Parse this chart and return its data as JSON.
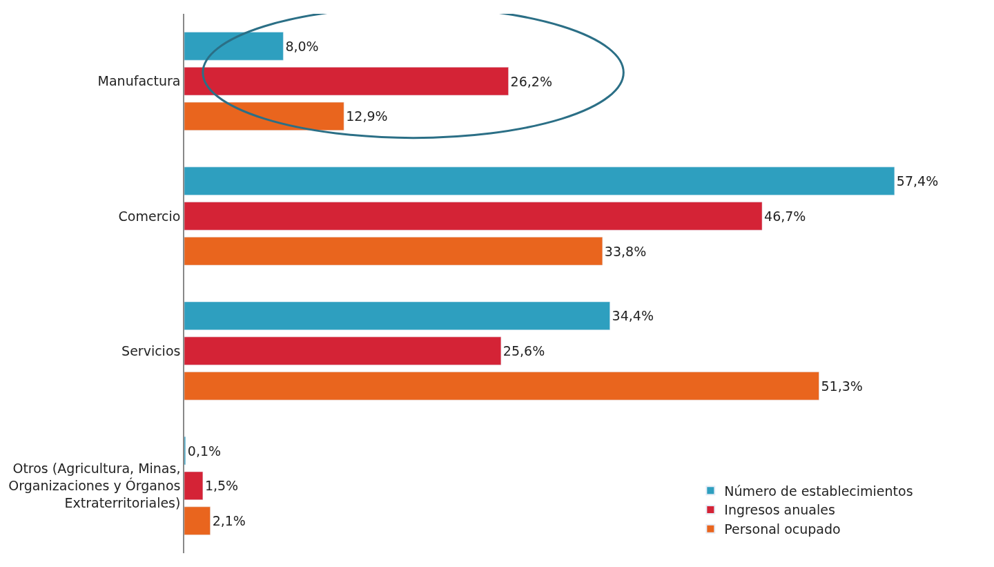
{
  "chart_data": {
    "type": "bar",
    "orientation": "horizontal",
    "categories": [
      "Manufactura",
      "Comercio",
      "Servicios",
      "Otros (Agricultura, Minas, Organizaciones y Órganos Extraterritoriales)"
    ],
    "series": [
      {
        "name": "Número de establecimientos",
        "color": "#2e9fbf",
        "values": [
          8.0,
          57.4,
          34.4,
          0.1
        ],
        "value_labels": [
          "8,0%",
          "57,4%",
          "34,4%",
          "0,1%"
        ]
      },
      {
        "name": "Ingresos anuales",
        "color": "#d42336",
        "values": [
          26.2,
          46.7,
          25.6,
          1.5
        ],
        "value_labels": [
          "26,2%",
          "46,7%",
          "25,6%",
          "1,5%"
        ]
      },
      {
        "name": "Personal ocupado",
        "color": "#e9651e",
        "values": [
          12.9,
          33.8,
          51.3,
          2.1
        ],
        "value_labels": [
          "12,9%",
          "33,8%",
          "51,3%",
          "2,1%"
        ]
      }
    ],
    "tick_labels": "y",
    "legend": "bottom right"
  }
}
